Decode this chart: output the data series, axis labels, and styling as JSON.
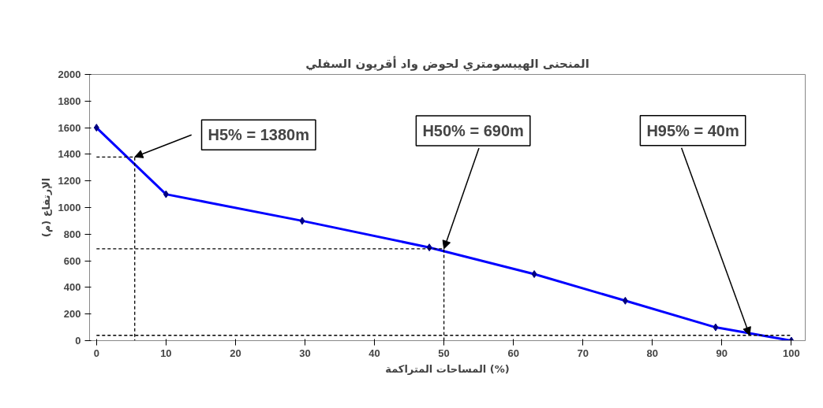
{
  "chart_data": {
    "type": "line",
    "title": "المنحنى الهيبسومتري لحوض واد أقريون السفلي",
    "xlabel": "المساحات المتراكمة (%)",
    "ylabel": "الإرتفاع (م)",
    "xlim": [
      -1,
      102
    ],
    "ylim": [
      0,
      2000
    ],
    "xticks": [
      0,
      10,
      20,
      30,
      40,
      50,
      60,
      70,
      80,
      90,
      100
    ],
    "yticks": [
      0,
      200,
      400,
      600,
      800,
      1000,
      1200,
      1400,
      1600,
      1800,
      2000
    ],
    "grid": false,
    "series": [
      {
        "color": "#0000ff",
        "marker": "diamond",
        "line_style": "solid",
        "x": [
          0,
          10,
          29.6,
          47.9,
          63,
          76.1,
          89.1,
          100
        ],
        "values": [
          1600,
          1100,
          900,
          700,
          500,
          300,
          100,
          0
        ]
      },
      {
        "color": "#000000",
        "marker": "none",
        "line_style": "dashed",
        "x": [
          0,
          5.5,
          5.5
        ],
        "values": [
          1380,
          1380,
          0
        ]
      },
      {
        "color": "#000000",
        "marker": "none",
        "line_style": "dashed",
        "x": [
          0,
          50,
          50
        ],
        "values": [
          690,
          690,
          0
        ]
      },
      {
        "color": "#000000",
        "marker": "none",
        "line_style": "dashed",
        "x": [
          0,
          100
        ],
        "values": [
          40,
          40
        ]
      }
    ],
    "annotations": [
      {
        "text": "H5% = 1380m",
        "x": 5.5,
        "y": 1380
      },
      {
        "text": "H50% = 690m",
        "x": 50,
        "y": 690
      },
      {
        "text": "H95% = 40m",
        "x": 94,
        "y": 40
      }
    ]
  }
}
